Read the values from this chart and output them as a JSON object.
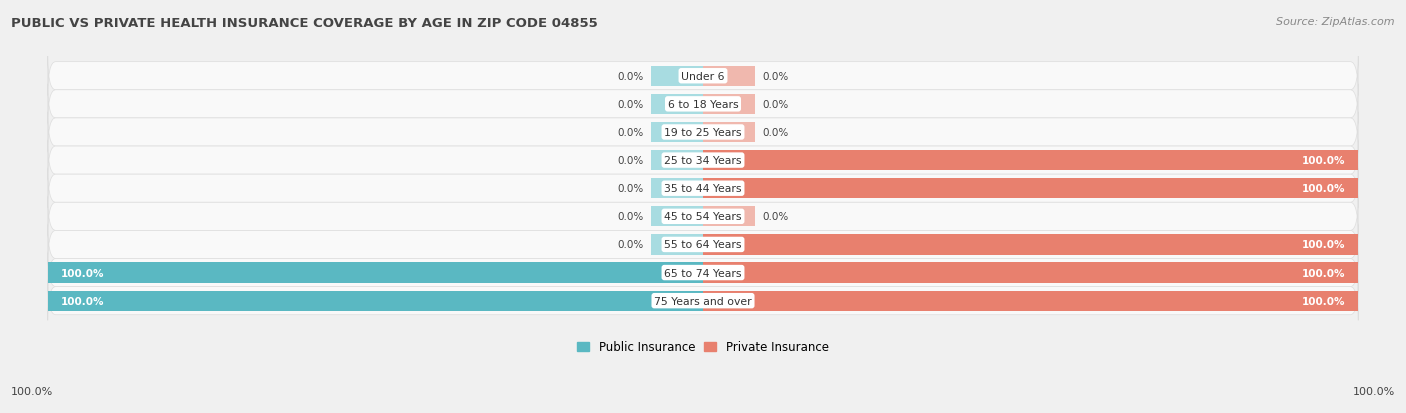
{
  "title": "PUBLIC VS PRIVATE HEALTH INSURANCE COVERAGE BY AGE IN ZIP CODE 04855",
  "source": "Source: ZipAtlas.com",
  "categories": [
    "Under 6",
    "6 to 18 Years",
    "19 to 25 Years",
    "25 to 34 Years",
    "35 to 44 Years",
    "45 to 54 Years",
    "55 to 64 Years",
    "65 to 74 Years",
    "75 Years and over"
  ],
  "public_values": [
    0.0,
    0.0,
    0.0,
    0.0,
    0.0,
    0.0,
    0.0,
    100.0,
    100.0
  ],
  "private_values": [
    0.0,
    0.0,
    0.0,
    100.0,
    100.0,
    0.0,
    100.0,
    100.0,
    100.0
  ],
  "public_color": "#5ab8c2",
  "public_color_light": "#a8dce1",
  "private_color": "#e8806e",
  "private_color_light": "#f0b8ae",
  "bg_color": "#f0f0f0",
  "row_bg_color": "#ffffff",
  "row_alt_color": "#e8e8e8",
  "label_color_dark": "#444444",
  "label_color_light": "#ffffff",
  "title_color": "#444444",
  "source_color": "#888888",
  "bar_height": 0.72,
  "figsize": [
    14.06,
    4.14
  ],
  "dpi": 100,
  "xlim_left": -100,
  "xlim_right": 100,
  "stub_size": 8
}
